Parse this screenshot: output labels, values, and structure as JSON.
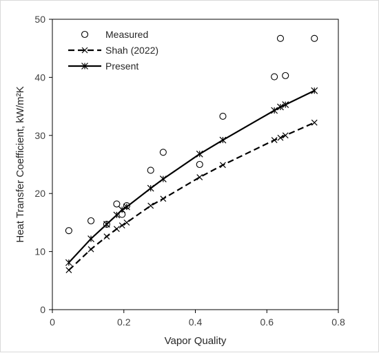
{
  "chart_data": {
    "type": "scatter",
    "xlabel": "Vapor Quality",
    "ylabel": "Heat Transfer Coefficient, kW/m²K",
    "xlim": [
      0,
      0.8
    ],
    "ylim": [
      0,
      50
    ],
    "x_ticks": [
      "0",
      "0.2",
      "0.4",
      "0.6",
      "0.8"
    ],
    "y_ticks": [
      "0",
      "10",
      "20",
      "30",
      "40",
      "50"
    ],
    "grid": false,
    "legend_position": "top-left",
    "colors": {
      "axis": "#000000",
      "text": "#404040",
      "series": "#000000"
    },
    "series": [
      {
        "name": "Measured",
        "style": "circle-markers",
        "points": [
          [
            0.046,
            13.6
          ],
          [
            0.108,
            15.3
          ],
          [
            0.152,
            14.7
          ],
          [
            0.18,
            18.2
          ],
          [
            0.195,
            16.4
          ],
          [
            0.208,
            17.9
          ],
          [
            0.275,
            24.0
          ],
          [
            0.31,
            27.1
          ],
          [
            0.412,
            25.0
          ],
          [
            0.477,
            33.3
          ],
          [
            0.621,
            40.1
          ],
          [
            0.638,
            46.7
          ],
          [
            0.652,
            40.3
          ],
          [
            0.733,
            46.7
          ]
        ]
      },
      {
        "name": "Shah (2022)",
        "style": "dashed-line-x-markers",
        "points": [
          [
            0.046,
            6.8
          ],
          [
            0.108,
            10.4
          ],
          [
            0.152,
            12.6
          ],
          [
            0.18,
            13.9
          ],
          [
            0.195,
            14.5
          ],
          [
            0.208,
            15.0
          ],
          [
            0.275,
            17.9
          ],
          [
            0.31,
            19.1
          ],
          [
            0.412,
            22.8
          ],
          [
            0.477,
            24.9
          ],
          [
            0.621,
            29.2
          ],
          [
            0.638,
            29.6
          ],
          [
            0.652,
            30.0
          ],
          [
            0.733,
            32.2
          ]
        ]
      },
      {
        "name": "Present",
        "style": "solid-line-star-markers",
        "points": [
          [
            0.046,
            8.1
          ],
          [
            0.108,
            12.2
          ],
          [
            0.152,
            14.7
          ],
          [
            0.18,
            16.3
          ],
          [
            0.195,
            17.2
          ],
          [
            0.208,
            17.7
          ],
          [
            0.275,
            20.9
          ],
          [
            0.31,
            22.5
          ],
          [
            0.412,
            26.8
          ],
          [
            0.477,
            29.2
          ],
          [
            0.621,
            34.3
          ],
          [
            0.638,
            34.9
          ],
          [
            0.652,
            35.3
          ],
          [
            0.733,
            37.7
          ]
        ]
      }
    ]
  }
}
